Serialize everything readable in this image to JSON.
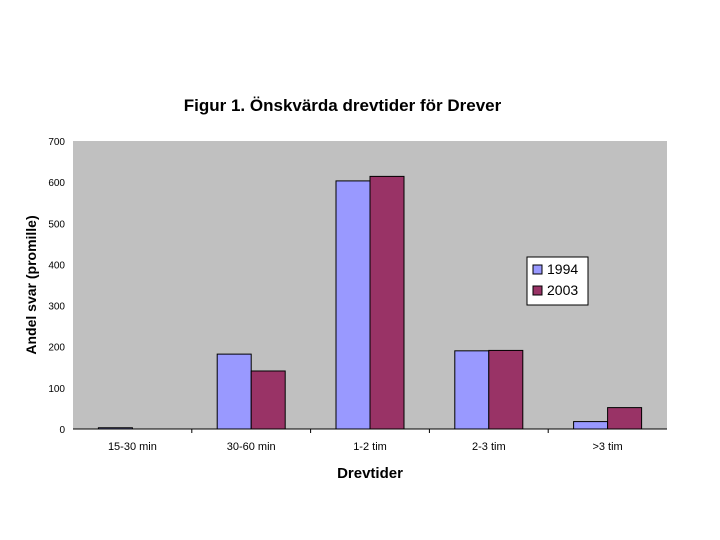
{
  "chart_data": {
    "type": "bar",
    "title": "Figur 1. Önskvärda drevtider för Drever",
    "xlabel": "Drevtider",
    "ylabel": "Andel svar (promille)",
    "categories": [
      "15-30 min",
      "30-60 min",
      "1-2 tim",
      "2-3 tim",
      ">3 tim"
    ],
    "series": [
      {
        "name": "1994",
        "values": [
          3,
          182,
          603,
          190,
          18
        ],
        "color": "#9999ff"
      },
      {
        "name": "2003",
        "values": [
          0,
          141,
          614,
          191,
          52
        ],
        "color": "#993366"
      }
    ],
    "ylim": [
      0,
      700
    ],
    "yticks": [
      0,
      100,
      200,
      300,
      400,
      500,
      600,
      700
    ],
    "ytick_labels": [
      "0",
      "100",
      "200",
      "300",
      "400",
      "500",
      "600",
      "700"
    ],
    "plot_background": "#c0c0c0",
    "grid": false,
    "legend": "right"
  }
}
